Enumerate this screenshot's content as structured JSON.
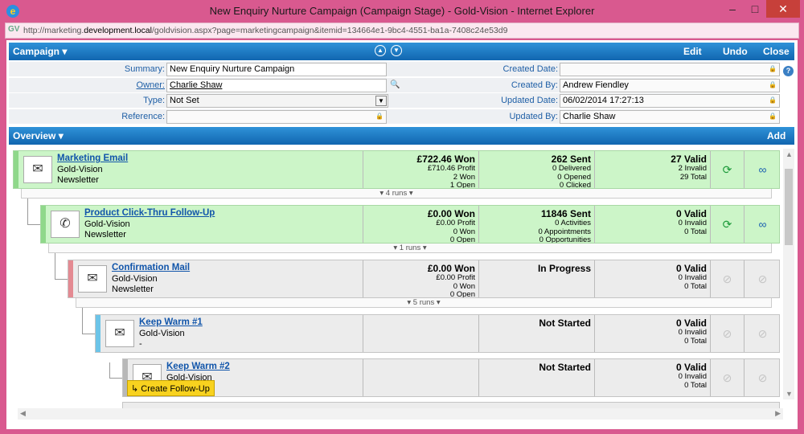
{
  "window": {
    "title": "New Enquiry Nurture Campaign (Campaign Stage) - Gold-Vision - Internet Explorer",
    "url_pre": "http://marketing.",
    "url_host": "development.local",
    "url_post": "/goldvision.aspx?page=marketingcampaign&itemid=134664e1-9bc4-4551-ba1a-7408c24e53d9"
  },
  "campaign_bar": {
    "title": "Campaign",
    "edit": "Edit",
    "undo": "Undo",
    "close": "Close"
  },
  "fields": {
    "summary": {
      "label": "Summary:",
      "value": "New Enquiry Nurture Campaign"
    },
    "owner": {
      "label": "Owner:",
      "value": "Charlie Shaw"
    },
    "type": {
      "label": "Type:",
      "value": "Not Set"
    },
    "reference": {
      "label": "Reference:",
      "value": ""
    },
    "created_date": {
      "label": "Created Date:",
      "value": ""
    },
    "created_by": {
      "label": "Created By:",
      "value": "Andrew Fiendley"
    },
    "updated_date": {
      "label": "Updated Date:",
      "value": "06/02/2014 17:27:13"
    },
    "updated_by": {
      "label": "Updated By:",
      "value": "Charlie Shaw"
    }
  },
  "overview_bar": {
    "title": "Overview",
    "add": "Add"
  },
  "cards": [
    {
      "name": "Marketing Email",
      "sub1": "Gold-Vision",
      "sub2": "Newsletter",
      "won": "£722.46 Won",
      "won_lines": [
        "£710.46 Profit",
        "2 Won",
        "1 Open"
      ],
      "sent": "262 Sent",
      "sent_lines": [
        "0 Delivered",
        "0 Opened",
        "0 Clicked"
      ],
      "valid": "27 Valid",
      "valid_lines": [
        "2 Invalid",
        "29 Total"
      ],
      "runs": "4 runs"
    },
    {
      "name": "Product Click-Thru Follow-Up",
      "sub1": "Gold-Vision",
      "sub2": "Newsletter",
      "won": "£0.00 Won",
      "won_lines": [
        "£0.00 Profit",
        "0 Won",
        "0 Open"
      ],
      "sent": "11846 Sent",
      "sent_lines": [
        "0 Activities",
        "0 Appointments",
        "0 Opportunities"
      ],
      "valid": "0 Valid",
      "valid_lines": [
        "0 Invalid",
        "0 Total"
      ],
      "runs": "1 runs"
    },
    {
      "name": "Confirmation Mail",
      "sub1": "Gold-Vision",
      "sub2": "Newsletter",
      "won": "£0.00 Won",
      "won_lines": [
        "£0.00 Profit",
        "0 Won",
        "0 Open"
      ],
      "sent": "In Progress",
      "sent_lines": [
        "",
        "",
        ""
      ],
      "valid": "0 Valid",
      "valid_lines": [
        "0 Invalid",
        "0 Total"
      ],
      "runs": "5 runs"
    },
    {
      "name": "Keep Warm #1",
      "sub1": "Gold-Vision",
      "sub2": "-",
      "won": "",
      "won_lines": [
        "",
        "",
        ""
      ],
      "sent": "Not Started",
      "sent_lines": [
        "",
        "",
        ""
      ],
      "valid": "0 Valid",
      "valid_lines": [
        "0 Invalid",
        "0 Total"
      ],
      "runs": ""
    },
    {
      "name": "Keep Warm #2",
      "sub1": "Gold-Vision",
      "sub2": "",
      "won": "",
      "won_lines": [
        "",
        "",
        ""
      ],
      "sent": "Not Started",
      "sent_lines": [
        "",
        "",
        ""
      ],
      "valid": "0 Valid",
      "valid_lines": [
        "0 Invalid",
        "0 Total"
      ],
      "runs": ""
    }
  ],
  "tooltip": "Create Follow-Up",
  "icons": {
    "refresh": "refresh-icon",
    "link": "link-icon",
    "disabled": "disabled-icon"
  }
}
